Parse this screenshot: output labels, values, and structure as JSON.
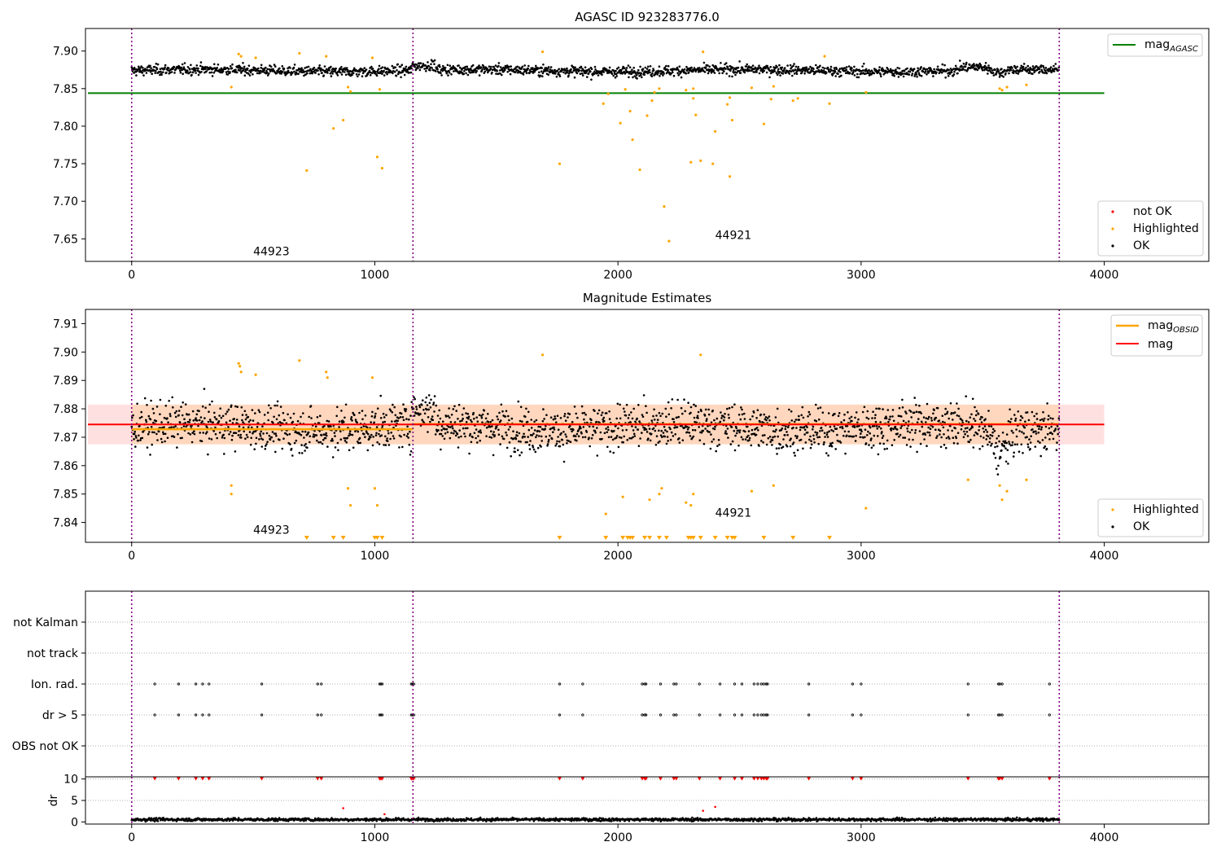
{
  "chart_data": [
    {
      "type": "scatter",
      "title": "AGASC ID 923283776.0",
      "xlim": [
        -190,
        4430
      ],
      "ylim": [
        7.62,
        7.93
      ],
      "xticks": [
        "0",
        "1000",
        "2000",
        "3000",
        "4000"
      ],
      "yticks": [
        "7.65",
        "7.70",
        "7.75",
        "7.80",
        "7.85",
        "7.90"
      ],
      "obs_boundaries": [
        0,
        1157,
        3815
      ],
      "obs_labels": [
        {
          "text": "44923",
          "x": 500,
          "y": 7.628
        },
        {
          "text": "44921",
          "x": 2400,
          "y": 7.65
        }
      ],
      "mag_agasc": 7.844,
      "ok_band": {
        "mean": 7.874,
        "spread": 0.006
      },
      "legend_top": {
        "position": "upper right",
        "entries": [
          {
            "label": "mag",
            "sub": "AGASC",
            "color": "#008000"
          }
        ]
      },
      "legend_bottom": {
        "position": "lower right",
        "entries": [
          {
            "label": "not OK",
            "color": "#ff0000"
          },
          {
            "label": "Highlighted",
            "color": "#ffa500"
          },
          {
            "label": "OK",
            "color": "#000000"
          }
        ]
      },
      "highlighted_points": [
        [
          410,
          7.852
        ],
        [
          440,
          7.896
        ],
        [
          450,
          7.893
        ],
        [
          510,
          7.891
        ],
        [
          690,
          7.897
        ],
        [
          720,
          7.741
        ],
        [
          800,
          7.893
        ],
        [
          830,
          7.797
        ],
        [
          870,
          7.808
        ],
        [
          890,
          7.852
        ],
        [
          900,
          7.846
        ],
        [
          990,
          7.891
        ],
        [
          1010,
          7.759
        ],
        [
          1020,
          7.849
        ],
        [
          1030,
          7.744
        ],
        [
          1690,
          7.899
        ],
        [
          1760,
          7.75
        ],
        [
          1940,
          7.83
        ],
        [
          1960,
          7.843
        ],
        [
          2010,
          7.804
        ],
        [
          2030,
          7.849
        ],
        [
          2050,
          7.82
        ],
        [
          2060,
          7.782
        ],
        [
          2090,
          7.742
        ],
        [
          2120,
          7.814
        ],
        [
          2140,
          7.834
        ],
        [
          2150,
          7.845
        ],
        [
          2170,
          7.85
        ],
        [
          2190,
          7.693
        ],
        [
          2210,
          7.647
        ],
        [
          2280,
          7.848
        ],
        [
          2300,
          7.752
        ],
        [
          2310,
          7.85
        ],
        [
          2310,
          7.837
        ],
        [
          2320,
          7.815
        ],
        [
          2340,
          7.754
        ],
        [
          2350,
          7.899
        ],
        [
          2390,
          7.75
        ],
        [
          2400,
          7.793
        ],
        [
          2450,
          7.829
        ],
        [
          2460,
          7.733
        ],
        [
          2470,
          7.808
        ],
        [
          2460,
          7.838
        ],
        [
          2550,
          7.851
        ],
        [
          2600,
          7.803
        ],
        [
          2630,
          7.836
        ],
        [
          2640,
          7.853
        ],
        [
          2720,
          7.834
        ],
        [
          2740,
          7.837
        ],
        [
          2850,
          7.893
        ],
        [
          2870,
          7.83
        ],
        [
          3020,
          7.845
        ],
        [
          3570,
          7.85
        ],
        [
          3580,
          7.848
        ],
        [
          3600,
          7.852
        ],
        [
          3680,
          7.855
        ]
      ]
    },
    {
      "type": "scatter",
      "title": "Magnitude Estimates",
      "xlim": [
        -190,
        4430
      ],
      "ylim": [
        7.833,
        7.915
      ],
      "xticks": [
        "0",
        "1000",
        "2000",
        "3000",
        "4000"
      ],
      "yticks": [
        "7.84",
        "7.85",
        "7.86",
        "7.87",
        "7.88",
        "7.89",
        "7.90",
        "7.91"
      ],
      "obs_boundaries": [
        0,
        1157,
        3815
      ],
      "obs_labels": [
        {
          "text": "44923",
          "x": 500,
          "y": 7.836
        },
        {
          "text": "44921",
          "x": 2400,
          "y": 7.842
        }
      ],
      "mag": 7.8745,
      "mag_band": [
        7.8675,
        7.8815
      ],
      "mag_obsid": [
        {
          "x0": 0,
          "x1": 1157,
          "y": 7.8728
        },
        {
          "x0": 1157,
          "x1": 3815,
          "y": 7.8746
        }
      ],
      "ok_band": {
        "mean": 7.8735,
        "spread": 0.0068
      },
      "legend_top": {
        "position": "upper right",
        "entries": [
          {
            "label": "mag",
            "sub": "OBSID",
            "color": "#ffa500"
          },
          {
            "label": "mag",
            "sub": "",
            "color": "#ff0000"
          }
        ]
      },
      "legend_bottom": {
        "position": "lower right",
        "entries": [
          {
            "label": "Highlighted",
            "color": "#ffa500"
          },
          {
            "label": "OK",
            "color": "#000000"
          }
        ]
      },
      "highlighted_points": [
        [
          410,
          7.85
        ],
        [
          410,
          7.853
        ],
        [
          440,
          7.896
        ],
        [
          445,
          7.895
        ],
        [
          450,
          7.893
        ],
        [
          510,
          7.892
        ],
        [
          690,
          7.897
        ],
        [
          800,
          7.893
        ],
        [
          805,
          7.891
        ],
        [
          890,
          7.852
        ],
        [
          900,
          7.846
        ],
        [
          990,
          7.891
        ],
        [
          1000,
          7.852
        ],
        [
          1010,
          7.846
        ],
        [
          1690,
          7.899
        ],
        [
          1950,
          7.843
        ],
        [
          2020,
          7.849
        ],
        [
          2130,
          7.848
        ],
        [
          2170,
          7.85
        ],
        [
          2180,
          7.852
        ],
        [
          2280,
          7.847
        ],
        [
          2300,
          7.846
        ],
        [
          2310,
          7.85
        ],
        [
          2340,
          7.899
        ],
        [
          2550,
          7.851
        ],
        [
          2640,
          7.853
        ],
        [
          3020,
          7.845
        ],
        [
          3440,
          7.855
        ],
        [
          3570,
          7.853
        ],
        [
          3580,
          7.848
        ],
        [
          3600,
          7.851
        ],
        [
          3680,
          7.855
        ]
      ],
      "clipped_points": [
        720,
        830,
        870,
        1000,
        1010,
        1030,
        1760,
        1950,
        2020,
        2040,
        2050,
        2060,
        2110,
        2130,
        2170,
        2200,
        2290,
        2300,
        2310,
        2340,
        2400,
        2450,
        2470,
        2480,
        2600,
        2720,
        2870
      ]
    },
    {
      "type": "scatter",
      "xlim": [
        -190,
        4430
      ],
      "xticks": [
        "0",
        "1000",
        "2000",
        "3000",
        "4000"
      ],
      "flag_rows": [
        "not Kalman",
        "not track",
        "Ion. rad.",
        "dr > 5",
        "OBS not OK"
      ],
      "obs_boundaries": [
        0,
        1157,
        3815
      ],
      "flag_times": [
        95,
        193,
        264,
        292,
        318,
        535,
        765,
        780,
        1020,
        1025,
        1030,
        1150,
        1155,
        1160,
        1760,
        1855,
        2100,
        2110,
        2115,
        2175,
        2230,
        2240,
        2335,
        2420,
        2480,
        2510,
        2560,
        2575,
        2590,
        2600,
        2610,
        2615,
        2785,
        2965,
        3000,
        3440,
        3565,
        3570,
        3580,
        3775
      ],
      "dr_panel": {
        "ylabel": "dr",
        "ylim": [
          -0.5,
          10.5
        ],
        "yticks": [
          "0",
          "5",
          "10"
        ],
        "clip_value": 10,
        "outliers": [
          [
            870,
            3.2
          ],
          [
            2400,
            3.5
          ],
          [
            2350,
            2.6
          ],
          [
            1040,
            1.8
          ]
        ]
      }
    }
  ]
}
